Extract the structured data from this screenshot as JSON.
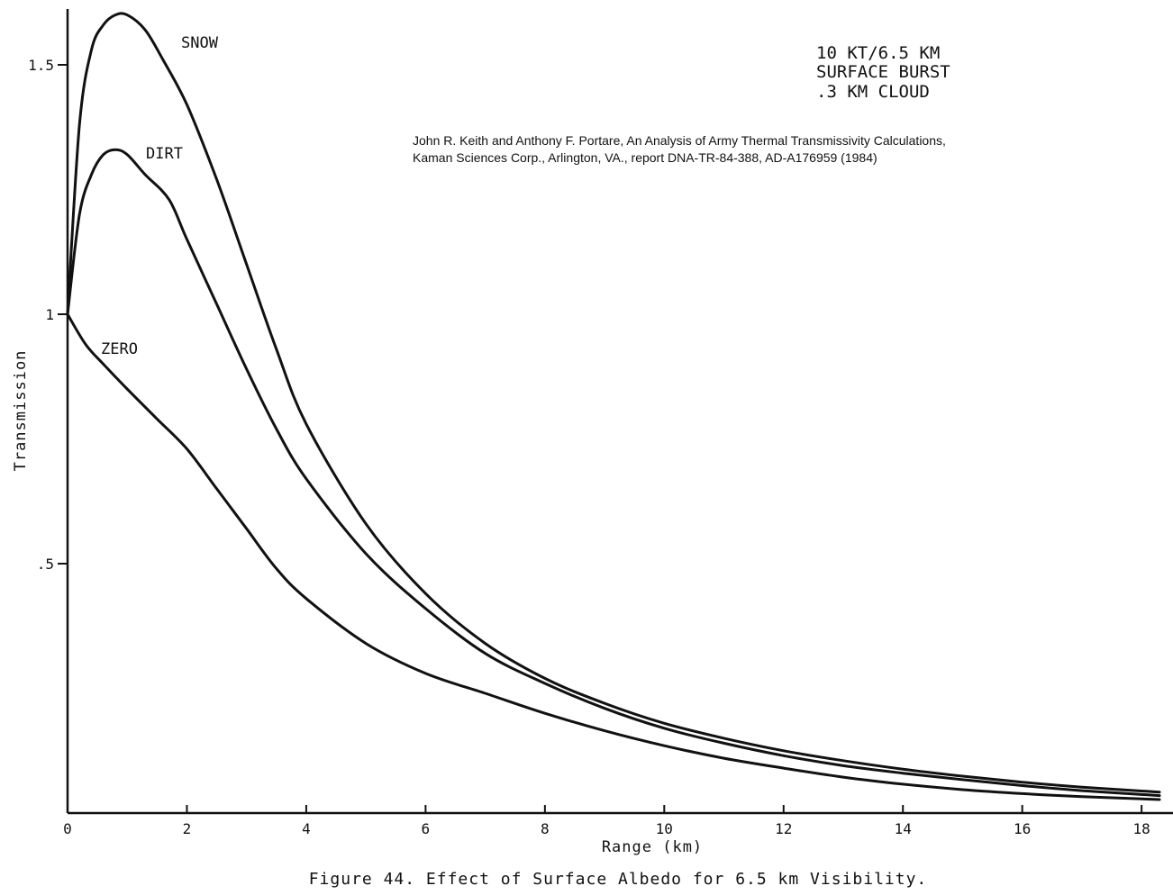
{
  "chart_data": {
    "type": "line",
    "xlabel": "Range (km)",
    "ylabel": "Transmission",
    "xlim": [
      0,
      18.3
    ],
    "ylim": [
      0,
      1.6
    ],
    "x_ticks": [
      0,
      2,
      4,
      6,
      8,
      10,
      12,
      14,
      16,
      18
    ],
    "x_tick_labels": [
      "0",
      "2",
      "4",
      "6",
      "8",
      "10",
      "12",
      "14",
      "16",
      "18"
    ],
    "y_ticks": [
      0.5,
      1,
      1.5
    ],
    "y_tick_labels": [
      ".5",
      "1",
      "1.5"
    ],
    "grid": false,
    "series": [
      {
        "name": "SNOW",
        "x": [
          0,
          0.2,
          0.4,
          0.6,
          0.8,
          1.0,
          1.3,
          1.6,
          2.0,
          2.5,
          3.0,
          3.5,
          4.0,
          5.0,
          6.0,
          7.0,
          8.0,
          9.0,
          10.0,
          11.0,
          12.0,
          13.0,
          14.0,
          15.0,
          16.0,
          17.0,
          18.3
        ],
        "y": [
          1.0,
          1.38,
          1.53,
          1.58,
          1.6,
          1.6,
          1.57,
          1.51,
          1.42,
          1.27,
          1.1,
          0.93,
          0.78,
          0.58,
          0.44,
          0.34,
          0.27,
          0.22,
          0.18,
          0.15,
          0.125,
          0.105,
          0.088,
          0.074,
          0.062,
          0.052,
          0.042
        ]
      },
      {
        "name": "DIRT",
        "x": [
          0,
          0.2,
          0.4,
          0.6,
          0.8,
          1.0,
          1.3,
          1.7,
          2.0,
          2.5,
          3.0,
          3.5,
          4.0,
          5.0,
          6.0,
          7.0,
          8.0,
          9.0,
          10.0,
          11.0,
          12.0,
          13.0,
          14.0,
          15.0,
          16.0,
          17.0,
          18.3
        ],
        "y": [
          1.0,
          1.2,
          1.28,
          1.32,
          1.33,
          1.32,
          1.28,
          1.23,
          1.15,
          1.02,
          0.89,
          0.77,
          0.67,
          0.52,
          0.41,
          0.32,
          0.26,
          0.21,
          0.17,
          0.14,
          0.115,
          0.095,
          0.08,
          0.067,
          0.055,
          0.045,
          0.035
        ]
      },
      {
        "name": "ZERO",
        "x": [
          0,
          0.3,
          0.6,
          1.0,
          1.5,
          2.0,
          2.5,
          3.0,
          3.5,
          4.0,
          5.0,
          6.0,
          7.0,
          8.0,
          9.0,
          10.0,
          11.0,
          12.0,
          13.0,
          14.0,
          15.0,
          16.0,
          17.0,
          18.3
        ],
        "y": [
          1.0,
          0.94,
          0.9,
          0.85,
          0.79,
          0.73,
          0.65,
          0.57,
          0.49,
          0.43,
          0.34,
          0.28,
          0.24,
          0.2,
          0.165,
          0.135,
          0.11,
          0.09,
          0.072,
          0.058,
          0.047,
          0.039,
          0.033,
          0.027
        ]
      }
    ],
    "info_lines": [
      "10 KT/6.5 KM",
      "SURFACE BURST",
      ".3 KM CLOUD"
    ],
    "citation_lines": [
      "John R. Keith and Anthony F. Portare, An Analysis of Army Thermal Transmissivity Calculations,",
      "Kaman Sciences Corp., Arlington, VA., report DNA-TR-84-388, AD-A176959 (1984)"
    ],
    "caption": "Figure 44.  Effect of Surface Albedo for 6.5 km Visibility."
  }
}
